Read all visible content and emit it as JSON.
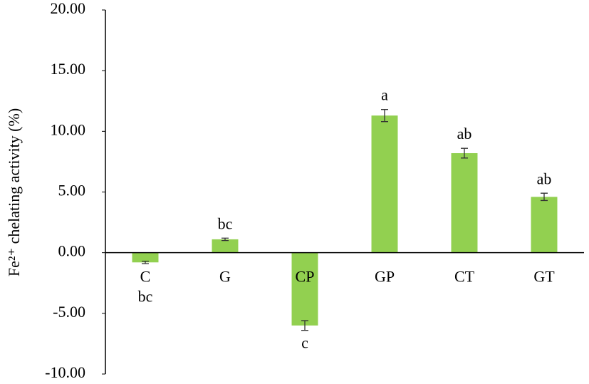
{
  "chart_data": {
    "type": "bar",
    "y_label": "Fe²⁺ chelating activity (%)",
    "categories": [
      "C",
      "G",
      "CP",
      "GP",
      "CT",
      "GT"
    ],
    "values": [
      -0.8,
      1.1,
      -6.0,
      11.3,
      8.2,
      4.6
    ],
    "errors": [
      0.1,
      0.1,
      0.4,
      0.5,
      0.4,
      0.3
    ],
    "annotations": [
      "bc",
      "bc",
      "c",
      "a",
      "ab",
      "ab"
    ],
    "color": "#92d050",
    "ylim": [
      -10,
      20
    ],
    "yticks": [
      {
        "value": -10,
        "label": "-10.00"
      },
      {
        "value": -5,
        "label": "-5.00"
      },
      {
        "value": 0,
        "label": "0.00"
      },
      {
        "value": 5,
        "label": "5.00"
      },
      {
        "value": 10,
        "label": "10.00"
      },
      {
        "value": 15,
        "label": "15.00"
      },
      {
        "value": 20,
        "label": "20.00"
      }
    ],
    "grid": false
  }
}
